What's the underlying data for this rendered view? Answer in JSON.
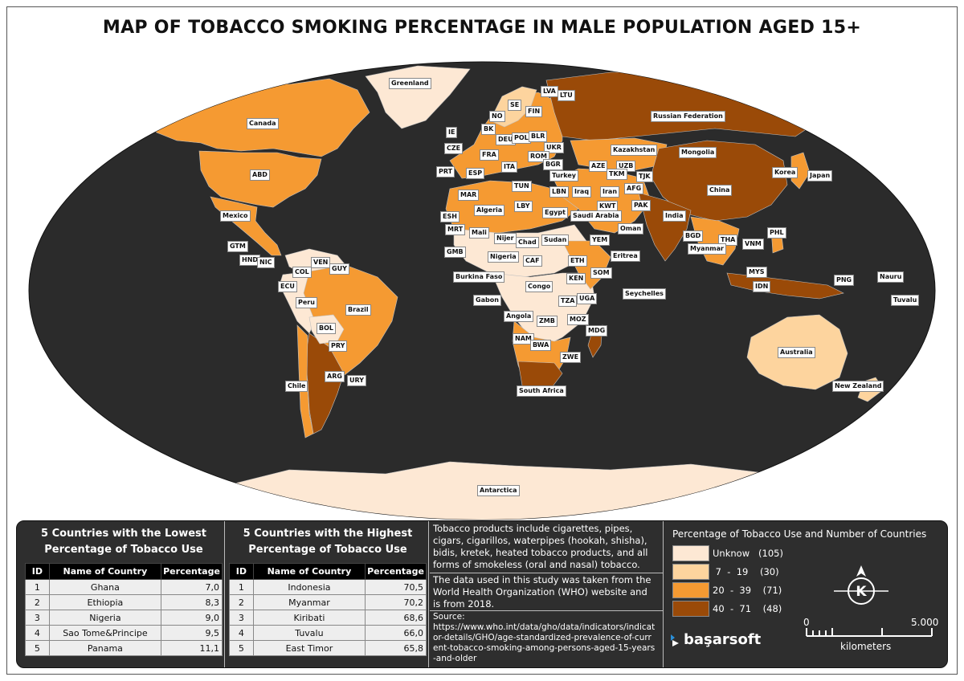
{
  "title": "MAP OF TOBACCO SMOKING PERCENTAGE IN MALE POPULATION AGED 15+",
  "colors": {
    "ocean": "#2b2b2b",
    "unknown": "#fde8d4",
    "range_7_19": "#fdd49e",
    "range_20_39": "#f59a32",
    "range_40_71": "#9a4a08",
    "panel": "#2e2e2e"
  },
  "map_labels": {
    "greenland": "Greenland",
    "canada": "Canada",
    "abd": "ABD",
    "mexico": "Mexico",
    "gtm": "GTM",
    "hnd": "HND",
    "nic": "NIC",
    "ven": "VEN",
    "guy": "GUY",
    "col": "COL",
    "ecu": "ECU",
    "peru": "Peru",
    "brazil": "Brazil",
    "bol": "BOL",
    "pry": "PRY",
    "chile": "Chile",
    "arg": "ARG",
    "ury": "URY",
    "lva": "LVA",
    "ltu": "LTU",
    "se": "SE",
    "fin": "FIN",
    "no": "NO",
    "ie": "IE",
    "bk": "BK",
    "deu": "DEU",
    "pol": "POL",
    "blr": "BLR",
    "cze": "CZE",
    "ukr": "UKR",
    "fra": "FRA",
    "rom": "ROM",
    "bgr": "BGR",
    "prt": "PRT",
    "esp": "ESP",
    "ita": "ITA",
    "turkey": "Turkey",
    "tun": "TUN",
    "lbn": "LBN",
    "mar": "MAR",
    "algeria": "Algeria",
    "lby": "LBY",
    "egypt": "Egypt",
    "esh": "ESH",
    "mrt": "MRT",
    "mali": "Mali",
    "nijer": "Nijer",
    "chad": "Chad",
    "sudan": "Sudan",
    "gmb": "GMB",
    "nigeria": "Nigeria",
    "caf": "CAF",
    "eth": "ETH",
    "burkina": "Burkina Faso",
    "gabon": "Gabon",
    "congo": "Congo",
    "ken": "KEN",
    "som": "SOM",
    "seychelles": "Seychelles",
    "tza": "TZA",
    "uga": "UGA",
    "angola": "Angola",
    "zmb": "ZMB",
    "moz": "MOZ",
    "mdg": "MDG",
    "nam": "NAM",
    "bwa": "BWA",
    "zwe": "ZWE",
    "south_africa": "South Africa",
    "russia": "Russian Federation",
    "kazakhstan": "Kazakhstan",
    "mongolia": "Mongolia",
    "aze": "AZE",
    "uzb": "UZB",
    "tkm": "TKM",
    "tjk": "TJK",
    "iraq": "Iraq",
    "iran": "Iran",
    "afg": "AFG",
    "kwt": "KWT",
    "saudi": "Saudi Arabia",
    "pak": "PAK",
    "oman": "Oman",
    "yem": "YEM",
    "eritrea": "Eritrea",
    "korea": "Korea",
    "japan": "Japan",
    "china": "China",
    "india": "India",
    "bgd": "BGD",
    "tha": "THA",
    "myanmar": "Myanmar",
    "vnm": "VNM",
    "phl": "PHL",
    "mys": "MYS",
    "idn": "IDN",
    "png": "PNG",
    "nauru": "Nauru",
    "tuvalu": "Tuvalu",
    "australia": "Australia",
    "new_zealand": "New Zealand",
    "antarctica": "Antarctica"
  },
  "lowest": {
    "heading_1": "5 Countries with the Lowest",
    "heading_2": "Percentage of Tobacco Use",
    "columns": [
      "ID",
      "Name of Country",
      "Percentage"
    ],
    "rows": [
      {
        "id": "1",
        "name": "Ghana",
        "pct": "7,0"
      },
      {
        "id": "2",
        "name": "Ethiopia",
        "pct": "8,3"
      },
      {
        "id": "3",
        "name": "Nigeria",
        "pct": "9,0"
      },
      {
        "id": "4",
        "name": "Sao Tome&Principe",
        "pct": "9,5"
      },
      {
        "id": "5",
        "name": "Panama",
        "pct": "11,1"
      }
    ]
  },
  "highest": {
    "heading_1": "5 Countries with the Highest",
    "heading_2": "Percentage of Tobacco Use",
    "columns": [
      "ID",
      "Name of Country",
      "Percentage"
    ],
    "rows": [
      {
        "id": "1",
        "name": "Indonesia",
        "pct": "70,5"
      },
      {
        "id": "2",
        "name": "Myanmar",
        "pct": "70,2"
      },
      {
        "id": "3",
        "name": "Kiribati",
        "pct": "68,6"
      },
      {
        "id": "4",
        "name": "Tuvalu",
        "pct": "66,0"
      },
      {
        "id": "5",
        "name": "East Timor",
        "pct": "65,8"
      }
    ]
  },
  "notes": {
    "products": "Tobacco products include cigarettes, pipes, cigars, cigarillos, waterpipes (hookah, shisha), bidis, kretek, heated tobacco products, and all forms of smokeless (oral and nasal) tobacco.",
    "data_source": "The data used in this study was taken from the World Health Organization (WHO) website and is from 2018.",
    "source_label": "Source:",
    "source_url": "https://www.who.int/data/gho/data/indicators/indicator-details/GHO/age-standardized-prevalence-of-current-tobacco-smoking-among-persons-aged-15-years-and-older"
  },
  "legend": {
    "title": "Percentage of Tobacco Use and Number of Countries",
    "items": [
      {
        "label": "Unknow   (105)",
        "color": "#fde8d4"
      },
      {
        "label": " 7  -  19    (30)",
        "color": "#fdd49e"
      },
      {
        "label": "20  -  39    (71)",
        "color": "#f59a32"
      },
      {
        "label": "40  -  71    (48)",
        "color": "#9a4a08"
      }
    ]
  },
  "compass": {
    "letter": "K"
  },
  "scale": {
    "start": "0",
    "end": "5.000",
    "unit": "kilometers"
  },
  "logo": {
    "text": "başarsoft"
  }
}
